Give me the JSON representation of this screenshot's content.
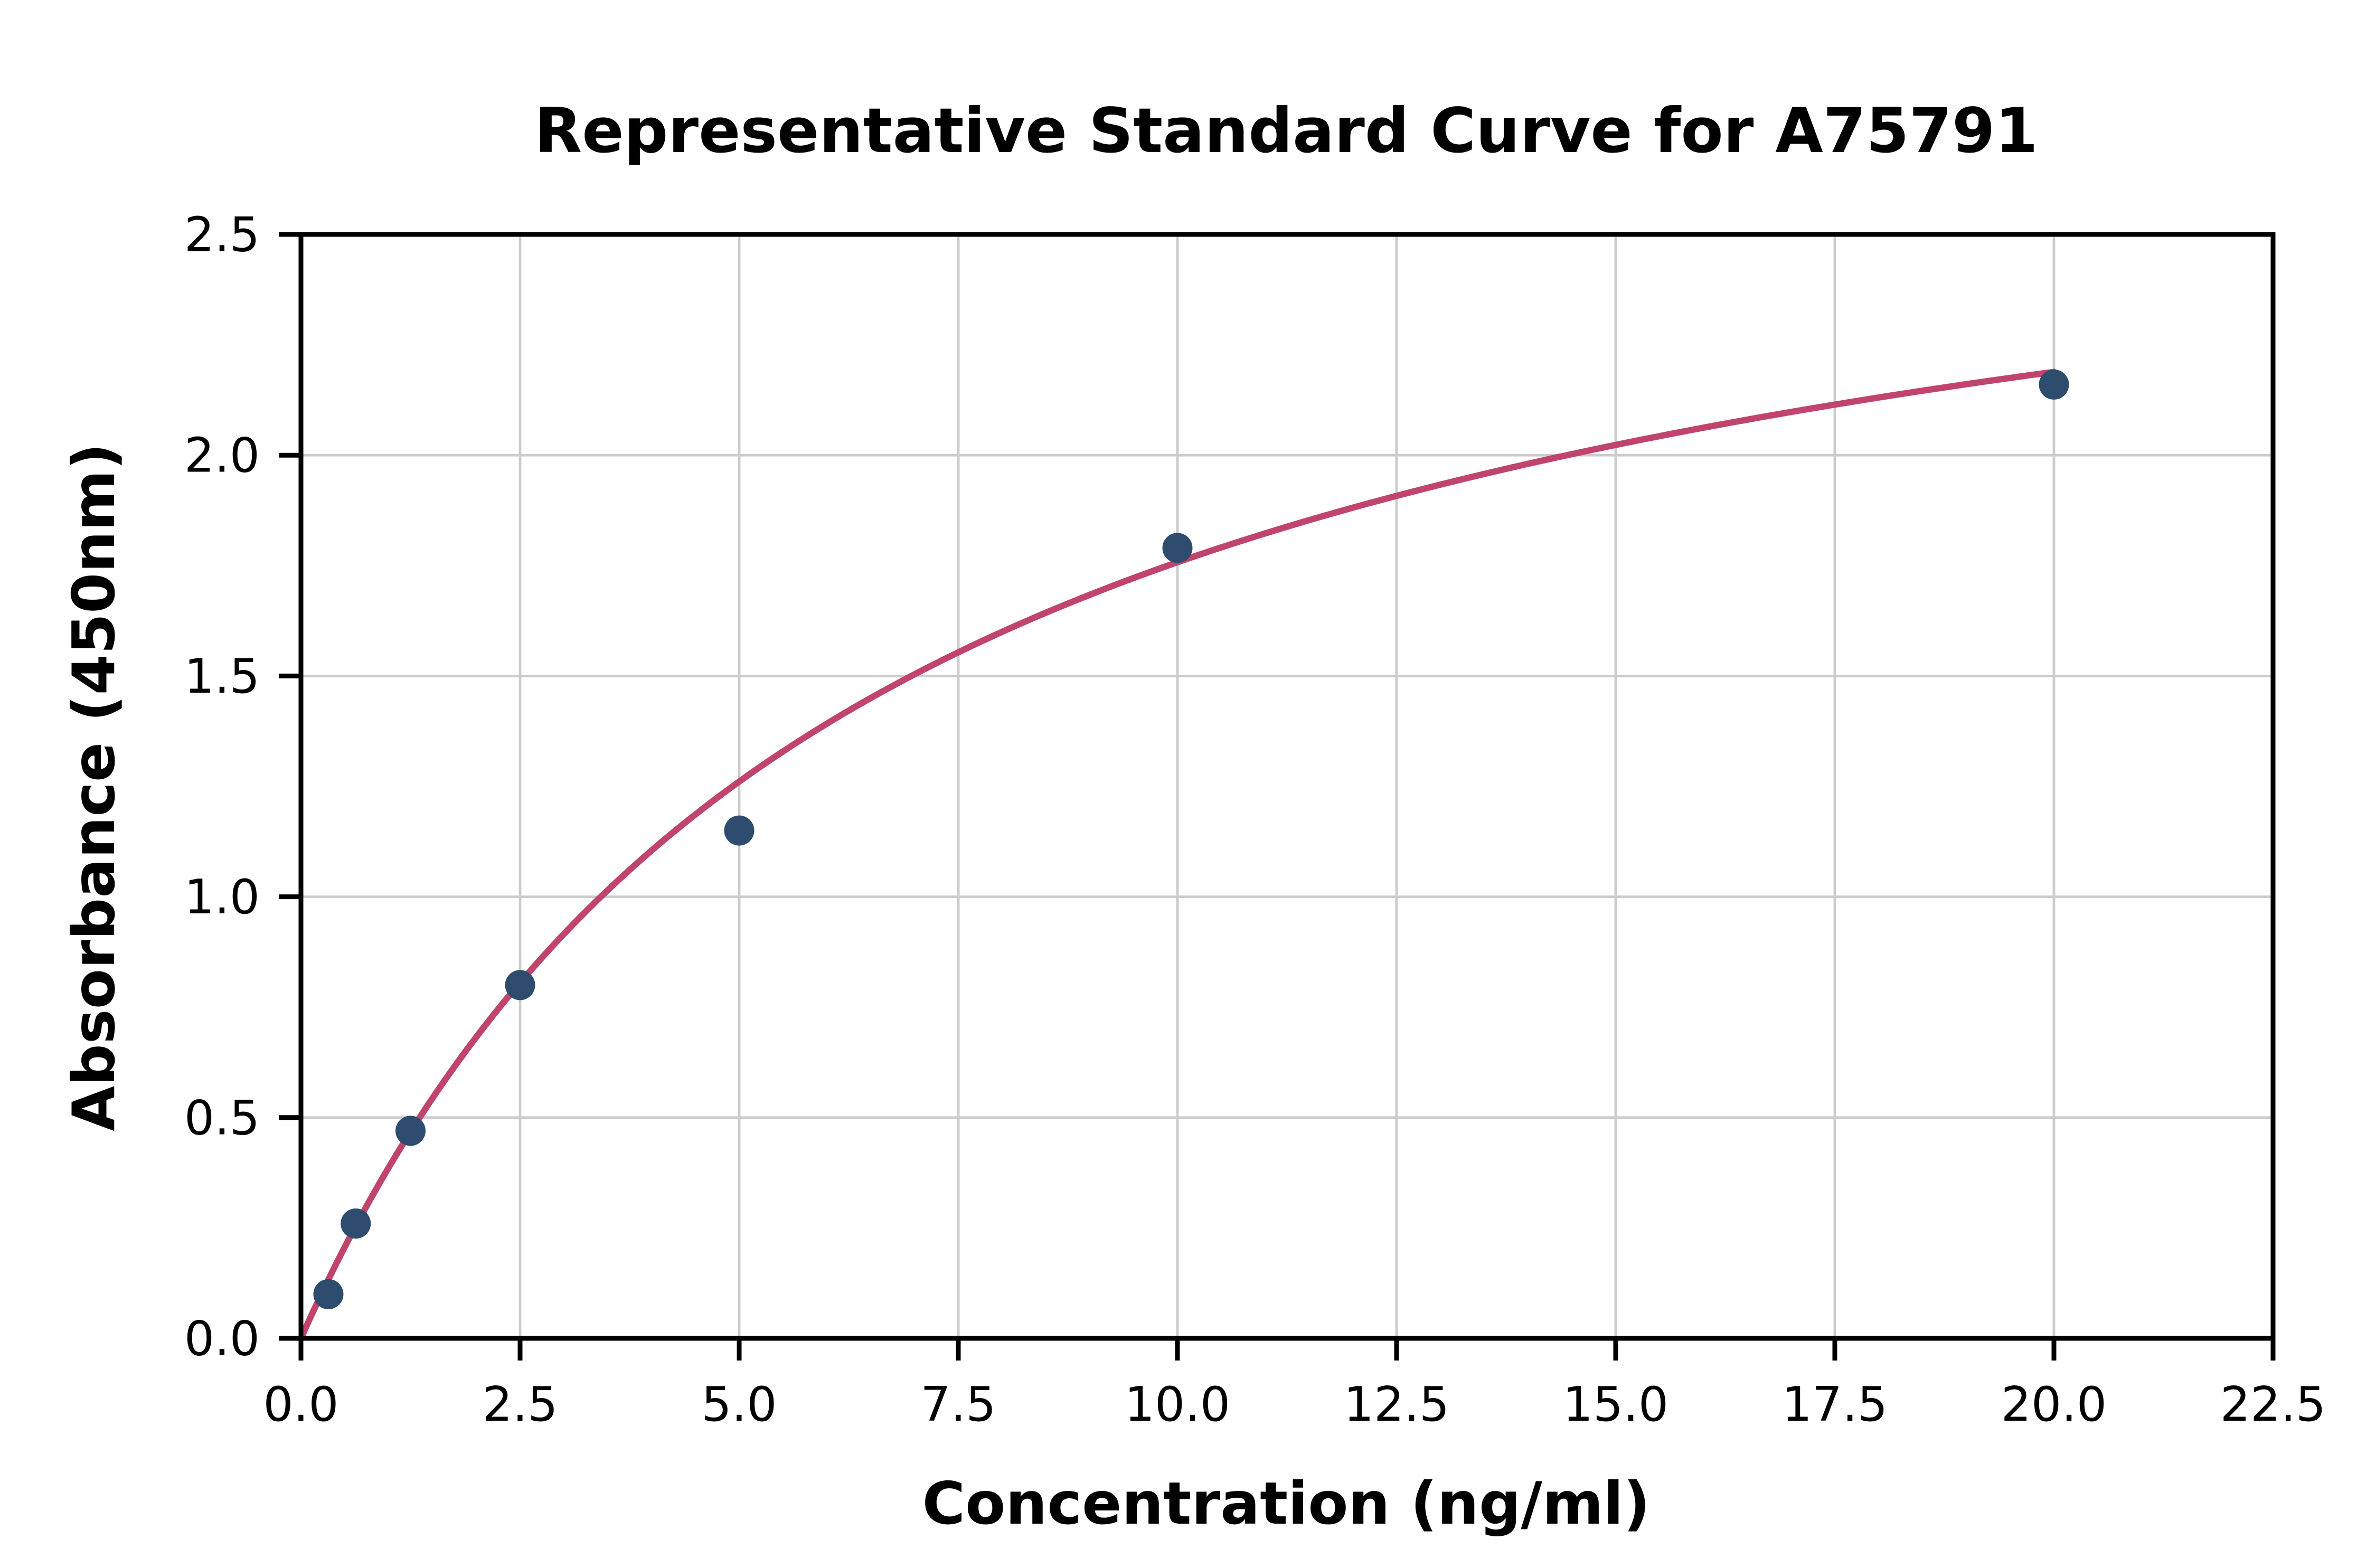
{
  "chart_data": {
    "type": "scatter",
    "title": "Representative Standard Curve for A75791",
    "xlabel": "Concentration (ng/ml)",
    "ylabel": "Absorbance (450nm)",
    "xlim": [
      0,
      22.5
    ],
    "ylim": [
      0,
      2.5
    ],
    "xticks": [
      0,
      2.5,
      5,
      7.5,
      10,
      12.5,
      15,
      17.5,
      20,
      22.5
    ],
    "xtick_labels": [
      "0.0",
      "2.5",
      "5.0",
      "7.5",
      "10.0",
      "12.5",
      "15.0",
      "17.5",
      "20.0",
      "22.5"
    ],
    "yticks": [
      0,
      0.5,
      1,
      1.5,
      2,
      2.5
    ],
    "ytick_labels": [
      "0.0",
      "0.5",
      "1.0",
      "1.5",
      "2.0",
      "2.5"
    ],
    "grid": true,
    "legend": "none",
    "points": [
      {
        "x": 0.313,
        "y": 0.1
      },
      {
        "x": 0.625,
        "y": 0.26
      },
      {
        "x": 1.25,
        "y": 0.47
      },
      {
        "x": 2.5,
        "y": 0.8
      },
      {
        "x": 5.0,
        "y": 1.15
      },
      {
        "x": 10.0,
        "y": 1.79
      },
      {
        "x": 20.0,
        "y": 2.16
      }
    ],
    "fit_curve": {
      "model": "4pl",
      "a": 0.0,
      "b": 1.0,
      "c": 6.5,
      "d": 2.9,
      "x_start": 0,
      "x_end": 20
    },
    "colors": {
      "curve": "#c0446c",
      "points": "#2e4d6e",
      "grid": "#cccccc",
      "axis": "#000000"
    }
  }
}
